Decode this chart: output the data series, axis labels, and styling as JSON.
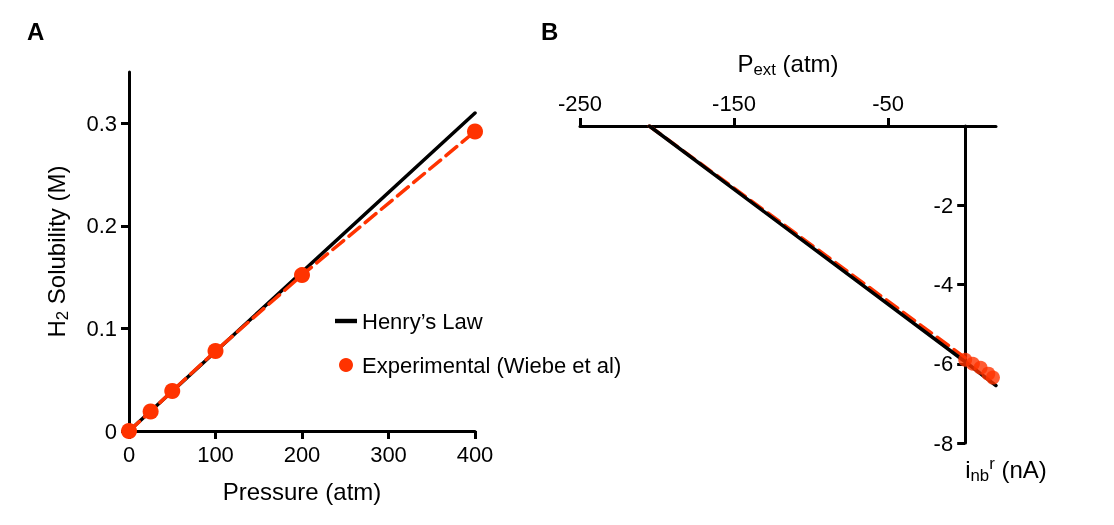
{
  "chart_data": [
    {
      "type": "line",
      "title": "A",
      "xlabel": "Pressure (atm)",
      "ylabel": "H$_{2}$ Solubility (M)",
      "xlim": [
        0,
        400
      ],
      "xticks": [
        0,
        100,
        200,
        300,
        400
      ],
      "ylim": [
        0,
        0.35
      ],
      "yticks": [
        0,
        0.1,
        0.2,
        0.3
      ],
      "grid": false,
      "legend": "right",
      "series": [
        {
          "name": "Henry’s Law",
          "color": "#000000",
          "marker": "none",
          "line_style": "solid",
          "x": [
            0,
            400
          ],
          "values": [
            0,
            0.31
          ]
        },
        {
          "name": "Experimental (Wiebe et al)",
          "color": "#ff3300",
          "marker": "circle",
          "line_style": "dashed",
          "x": [
            0,
            25,
            50,
            100,
            200,
            400
          ],
          "values": [
            0,
            0.019,
            0.039,
            0.078,
            0.152,
            0.292
          ]
        }
      ]
    },
    {
      "type": "line",
      "title": "B",
      "xlabel": "P$_{ext}$ (atm)",
      "ylabel": "i$_{nb}$$^{r}$ (nA)",
      "xlim": [
        -250,
        20
      ],
      "xticks": [
        -250,
        -150,
        -50
      ],
      "ylim": [
        -8,
        0
      ],
      "yticks": [
        -8,
        -6,
        -4,
        -2
      ],
      "grid": false,
      "legend": false,
      "series": [
        {
          "color": "#ff3300",
          "marker": "none",
          "line_style": "dashed",
          "x": [
            -205,
            0
          ],
          "values": [
            0,
            -5.85
          ]
        },
        {
          "color": "#000000",
          "marker": "none",
          "line_style": "solid",
          "x": [
            -205,
            0,
            20
          ],
          "values": [
            0,
            -5.95,
            -6.55
          ]
        },
        {
          "type": "scatter",
          "color": "#ff3300",
          "marker": "circle",
          "x": [
            0,
            5,
            10,
            15,
            18
          ],
          "values": [
            -5.9,
            -6.0,
            -6.1,
            -6.25,
            -6.35
          ]
        }
      ]
    }
  ]
}
